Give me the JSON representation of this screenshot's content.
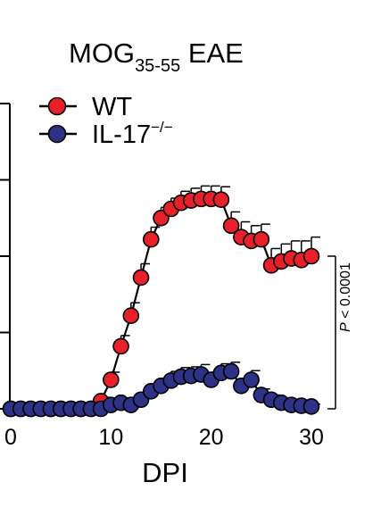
{
  "chart_data": {
    "type": "line",
    "title": {
      "main": "MOG",
      "subscript": "35-55",
      "rest": " EAE"
    },
    "xlabel": "DPI",
    "ylabel": "",
    "xlim": [
      0,
      30
    ],
    "ylim": [
      0,
      4
    ],
    "xticks": [
      0,
      10,
      20,
      30
    ],
    "xtick_labels": [
      "0",
      "10",
      "20",
      "30"
    ],
    "yticks": [
      0,
      1,
      2,
      3,
      4
    ],
    "ytick_labels": [],
    "legend_position": "top-left",
    "x": [
      0,
      1,
      2,
      3,
      4,
      5,
      6,
      7,
      8,
      9,
      10,
      11,
      12,
      13,
      14,
      15,
      16,
      17,
      18,
      19,
      20,
      21,
      22,
      23,
      24,
      25,
      26,
      27,
      28,
      29,
      30
    ],
    "series": [
      {
        "name": "WT",
        "name_superscript": "",
        "color": "#E8202A",
        "values": [
          0,
          0,
          0,
          0,
          0,
          0,
          0,
          0,
          0,
          0.1,
          0.38,
          0.82,
          1.22,
          1.72,
          2.22,
          2.5,
          2.62,
          2.7,
          2.73,
          2.75,
          2.75,
          2.74,
          2.4,
          2.25,
          2.2,
          2.22,
          1.88,
          1.93,
          1.97,
          1.95,
          2.0
        ],
        "errors": [
          0,
          0,
          0,
          0,
          0,
          0,
          0,
          0,
          0,
          0.05,
          0.1,
          0.14,
          0.17,
          0.18,
          0.16,
          0.14,
          0.14,
          0.15,
          0.16,
          0.17,
          0.17,
          0.17,
          0.18,
          0.2,
          0.2,
          0.2,
          0.22,
          0.23,
          0.23,
          0.25,
          0.25
        ]
      },
      {
        "name": "IL-17",
        "name_superscript": "−/−",
        "color": "#2E3287",
        "values": [
          0,
          0,
          0,
          0,
          0,
          0,
          0,
          0,
          0,
          0,
          0.05,
          0.08,
          0.05,
          0.12,
          0.23,
          0.3,
          0.37,
          0.42,
          0.43,
          0.45,
          0.38,
          0.47,
          0.49,
          0.3,
          0.38,
          0.18,
          0.12,
          0.08,
          0.05,
          0.04,
          0.03
        ],
        "errors": [
          0,
          0,
          0,
          0,
          0,
          0,
          0,
          0,
          0,
          0,
          0.03,
          0.04,
          0.04,
          0.06,
          0.08,
          0.1,
          0.12,
          0.12,
          0.12,
          0.13,
          0.1,
          0.12,
          0.12,
          0.1,
          0.12,
          0.08,
          0.06,
          0.05,
          0.04,
          0.03,
          0.03
        ]
      }
    ],
    "annotation": {
      "p_italic": "P",
      "p_rest": " < 0.0001",
      "bracket_from": 2.0,
      "bracket_to": 0.0
    }
  }
}
